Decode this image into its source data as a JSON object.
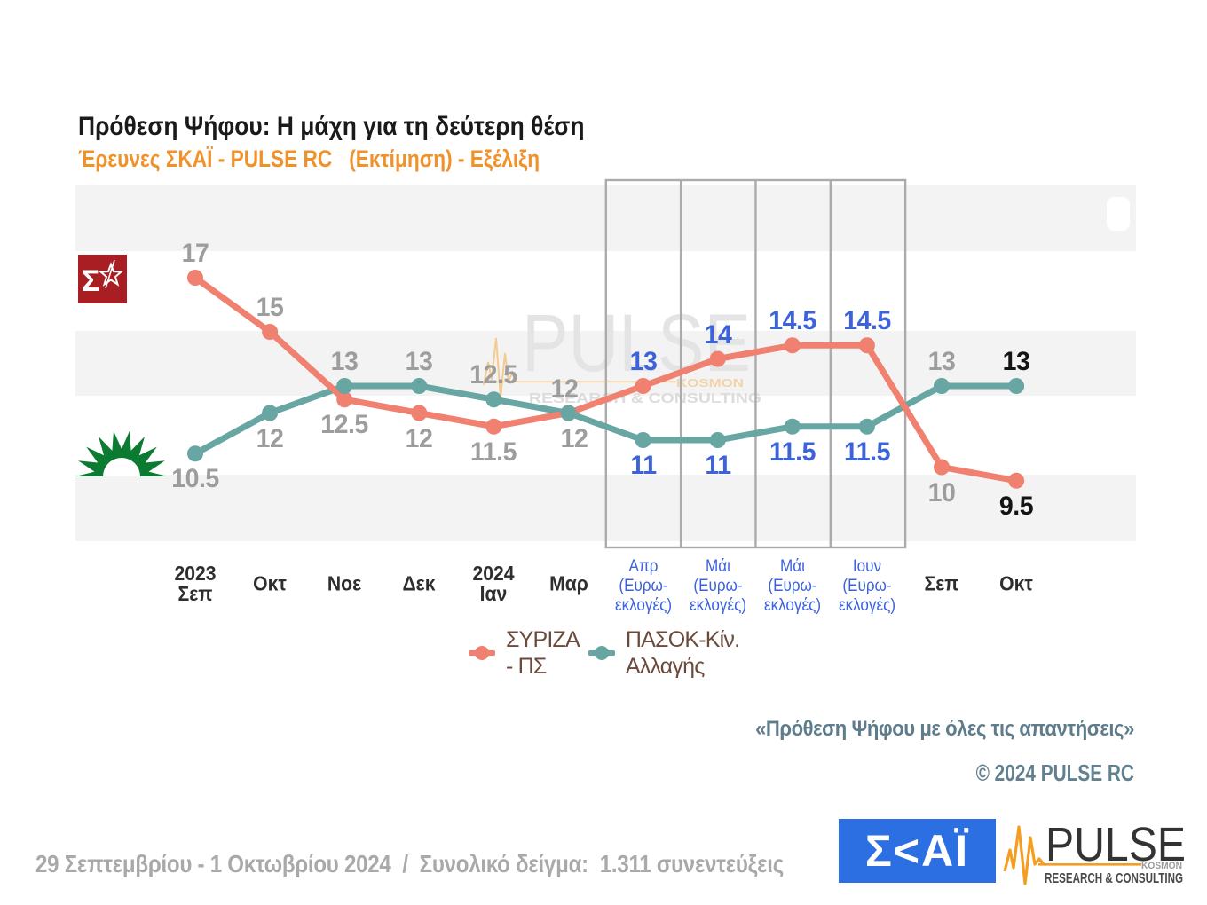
{
  "header": {
    "title": "Πρόθεση Ψήφου: Η μάχη για τη δεύτερη θέση",
    "subtitle": "Έρευνες ΣΚΑΪ - PULSE RC   (Εκτίμηση) - Εξέλιξη"
  },
  "chart_data": {
    "type": "line",
    "categories_lines": [
      [
        "2023",
        "Σεπ"
      ],
      [
        "Οκτ"
      ],
      [
        "Νοε"
      ],
      [
        "Δεκ"
      ],
      [
        "2024",
        "Ιαν"
      ],
      [
        "Μαρ"
      ],
      [
        "Απρ",
        "(Ευρω-",
        "εκλογές)"
      ],
      [
        "Μάι",
        "(Ευρω-",
        "εκλογές)"
      ],
      [
        "Μάι",
        "(Ευρω-",
        "εκλογές)"
      ],
      [
        "Ιουν",
        "(Ευρω-",
        "εκλογές)"
      ],
      [
        "Σεπ"
      ],
      [
        "Οκτ"
      ]
    ],
    "category_color": [
      "dark",
      "dark",
      "dark",
      "dark",
      "dark",
      "dark",
      "blue",
      "blue",
      "blue",
      "blue",
      "dark",
      "dark"
    ],
    "value_label_color": [
      "gray",
      "gray",
      "gray",
      "gray",
      "gray",
      "gray",
      "blue",
      "blue",
      "blue",
      "blue",
      "gray",
      "black"
    ],
    "euro_boxes": {
      "start_index": 6,
      "count": 4
    },
    "series": [
      {
        "name": "ΣΥΡΙΖΑ - ΠΣ",
        "color": "#f0806f",
        "values": [
          17,
          15,
          12.5,
          12,
          11.5,
          12,
          13,
          14,
          14.5,
          14.5,
          10,
          9.5
        ],
        "label_side": [
          "above",
          "above",
          "below",
          "below",
          "below",
          "above",
          "above",
          "above",
          "above",
          "above",
          "below",
          "below"
        ]
      },
      {
        "name": "ΠΑΣΟΚ-Κίν. Αλλαγής",
        "color": "#67a6a2",
        "values": [
          10.5,
          12,
          13,
          13,
          12.5,
          12,
          11,
          11,
          11.5,
          11.5,
          13,
          13
        ],
        "label_side": [
          "below",
          "below",
          "above",
          "above",
          "above",
          "below",
          "below",
          "below",
          "below",
          "below",
          "above",
          "above"
        ]
      }
    ],
    "ylim": [
      8.5,
      18
    ],
    "grid": "horizontal-bands"
  },
  "legend": {
    "items": [
      {
        "lines": [
          "ΣΥΡΙΖΑ",
          "- ΠΣ"
        ],
        "color": "#f0806f"
      },
      {
        "lines": [
          "ΠΑΣΟΚ-Κίν.",
          "Αλλαγής"
        ],
        "color": "#67a6a2"
      }
    ]
  },
  "watermark": {
    "word": "PULSE",
    "kosmon": "KOSMON",
    "tagline": "RESEARCH & CONSULTING"
  },
  "annotations": {
    "quote": "«Πρόθεση Ψήφου με όλες τις απαντήσεις»",
    "copyright": "© 2024 PULSE RC"
  },
  "footer": {
    "fieldwork": "29 Σεπτεμβρίου - 1 Οκτωβρίου 2024  /  Συνολικό δείγμα:  1.311 συνεντεύξεις"
  },
  "logos": {
    "skai_text": "Σ<ΑΪ",
    "pulse": {
      "word": "PULSE",
      "kosmon": "KOSMON",
      "tagline": "RESEARCH & CONSULTING"
    }
  },
  "colors": {
    "band": "#f3f3f3",
    "box_border": "#ababab",
    "blue_label": "#3d63db",
    "gray_label": "#9d9d9d",
    "black_label": "#141414",
    "slate": "#5e7c8b",
    "footer_gray": "#a9a9a9",
    "skai_blue": "#2c6fe2",
    "pulse_orange": "#f59d20",
    "syriza_red": "#a91e22",
    "pasok_green": "#0b7b31"
  }
}
